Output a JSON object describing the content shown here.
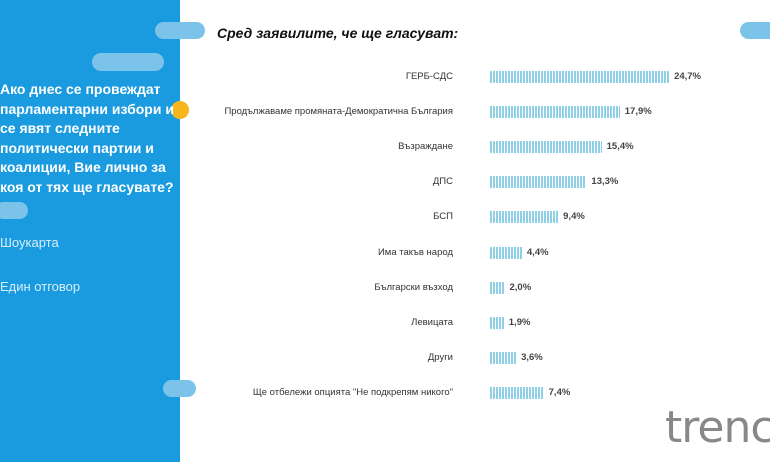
{
  "sidebar": {
    "question": "Ако днес се провеждат парламентарни избори и се явят следните политически партии и коалиции, Вие лично за коя от тях ще гласувате?",
    "method": "Шоукарта",
    "answer_type": "Един отговор"
  },
  "logo": "trend",
  "colors": {
    "panel": "#1a9be0",
    "bar": "#8fd0e6",
    "accent": "#f5b71c"
  },
  "chart_data": {
    "type": "bar",
    "orientation": "horizontal",
    "title": "Сред заявилите, че ще гласуват:",
    "categories": [
      "ГЕРБ-СДС",
      "Продължаваме промяната-Демократична България",
      "Възраждане",
      "ДПС",
      "БСП",
      "Има такъв народ",
      "Български възход",
      "Левицата",
      "Други",
      "Ще отбележи опцията \"Не подкрепям никого\""
    ],
    "values": [
      24.7,
      17.9,
      15.4,
      13.3,
      9.4,
      4.4,
      2.0,
      1.9,
      3.6,
      7.4
    ],
    "labels": [
      "24,7%",
      "17,9%",
      "15,4%",
      "13,3%",
      "9,4%",
      "4,4%",
      "2,0%",
      "1,9%",
      "3,6%",
      "7,4%"
    ]
  }
}
